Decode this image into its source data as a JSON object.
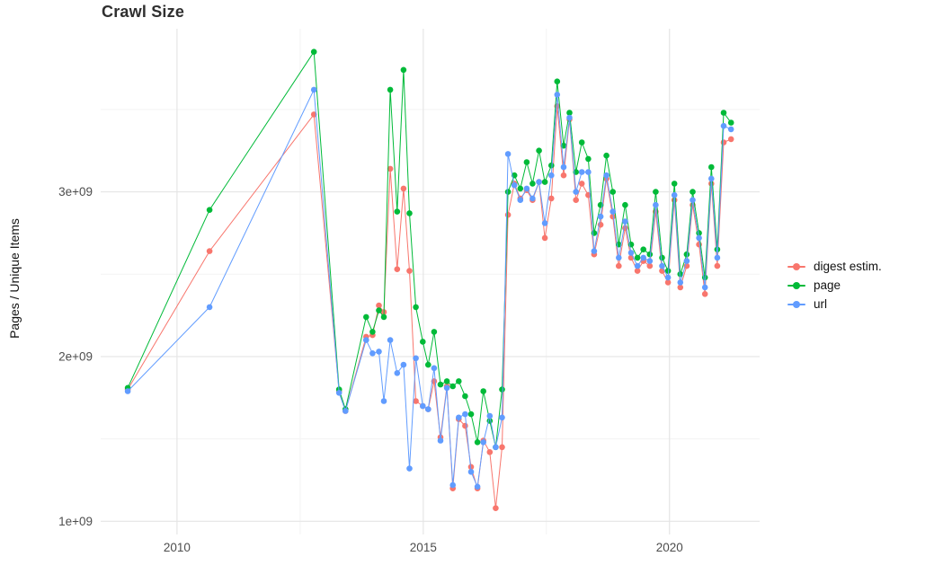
{
  "title": "Crawl Size",
  "axes": {
    "y_label": "Pages / Unique Items"
  },
  "legend": {
    "items": [
      {
        "label": "digest estim.",
        "color": "#F8766D"
      },
      {
        "label": "page",
        "color": "#00BA38"
      },
      {
        "label": "url",
        "color": "#619CFF"
      }
    ]
  },
  "chart_data": {
    "type": "line",
    "title": "Crawl Size",
    "xlabel": "",
    "ylabel": "Pages / Unique Items",
    "legend_position": "right",
    "grid": true,
    "y_unit_multiplier": 1000000000,
    "xlim": [
      2008.45,
      2021.83
    ],
    "ylim": [
      0.92,
      3.99
    ],
    "x_major_ticks": [
      2010,
      2015,
      2020
    ],
    "x_tick_labels": [
      "2010",
      "2015",
      "2020"
    ],
    "x_minor_ticks": [
      2012.5,
      2017.5
    ],
    "y_major_ticks": [
      1,
      2,
      3
    ],
    "y_tick_labels": [
      "1e+09",
      "2e+09",
      "3e+09"
    ],
    "y_minor_ticks": [
      1.5,
      2.5,
      3.5
    ],
    "x": [
      2009.0,
      2010.66,
      2012.78,
      2013.29,
      2013.42,
      2013.84,
      2013.97,
      2014.1,
      2014.2,
      2014.33,
      2014.47,
      2014.6,
      2014.72,
      2014.85,
      2014.99,
      2015.1,
      2015.22,
      2015.35,
      2015.48,
      2015.6,
      2015.72,
      2015.85,
      2015.97,
      2016.1,
      2016.22,
      2016.35,
      2016.47,
      2016.6,
      2016.72,
      2016.85,
      2016.97,
      2017.1,
      2017.22,
      2017.35,
      2017.47,
      2017.6,
      2017.72,
      2017.85,
      2017.97,
      2018.1,
      2018.22,
      2018.35,
      2018.47,
      2018.6,
      2018.72,
      2018.85,
      2018.97,
      2019.1,
      2019.22,
      2019.35,
      2019.47,
      2019.6,
      2019.72,
      2019.85,
      2019.97,
      2020.1,
      2020.22,
      2020.35,
      2020.47,
      2020.6,
      2020.72,
      2020.85,
      2020.97,
      2021.1,
      2021.25
    ],
    "series": [
      {
        "name": "digest estim.",
        "color": "#F8766D",
        "values": [
          1.8,
          2.64,
          3.47,
          1.79,
          1.67,
          2.12,
          2.13,
          2.31,
          2.27,
          3.14,
          2.53,
          3.02,
          2.52,
          1.73,
          1.7,
          1.68,
          1.85,
          1.51,
          1.82,
          1.2,
          1.62,
          1.58,
          1.33,
          1.2,
          1.49,
          1.42,
          1.08,
          1.45,
          2.86,
          3.05,
          2.96,
          3.01,
          2.95,
          3.06,
          2.72,
          2.96,
          3.52,
          3.1,
          3.44,
          2.95,
          3.05,
          2.98,
          2.62,
          2.8,
          3.08,
          2.85,
          2.55,
          2.78,
          2.6,
          2.52,
          2.58,
          2.55,
          2.88,
          2.52,
          2.45,
          2.95,
          2.42,
          2.55,
          2.92,
          2.68,
          2.38,
          3.05,
          2.55,
          3.3,
          3.32
        ]
      },
      {
        "name": "page",
        "color": "#00BA38",
        "values": [
          1.81,
          2.89,
          3.85,
          1.8,
          1.68,
          2.24,
          2.15,
          2.28,
          2.24,
          3.62,
          2.88,
          3.74,
          2.87,
          2.3,
          2.09,
          1.95,
          2.15,
          1.83,
          1.85,
          1.82,
          1.85,
          1.76,
          1.65,
          1.48,
          1.79,
          1.61,
          1.45,
          1.8,
          3.0,
          3.1,
          3.02,
          3.18,
          3.05,
          3.25,
          3.06,
          3.16,
          3.67,
          3.28,
          3.48,
          3.12,
          3.3,
          3.2,
          2.75,
          2.92,
          3.22,
          3.0,
          2.68,
          2.92,
          2.68,
          2.6,
          2.65,
          2.62,
          3.0,
          2.6,
          2.52,
          3.05,
          2.5,
          2.62,
          3.0,
          2.75,
          2.48,
          3.15,
          2.65,
          3.48,
          3.42
        ]
      },
      {
        "name": "url",
        "color": "#619CFF",
        "values": [
          1.79,
          2.3,
          3.62,
          1.78,
          1.67,
          2.1,
          2.02,
          2.03,
          1.73,
          2.1,
          1.9,
          1.95,
          1.32,
          1.99,
          1.7,
          1.68,
          1.93,
          1.49,
          1.81,
          1.22,
          1.63,
          1.65,
          1.3,
          1.21,
          1.48,
          1.64,
          1.45,
          1.63,
          3.23,
          3.04,
          2.95,
          3.02,
          2.96,
          3.06,
          2.81,
          3.1,
          3.59,
          3.15,
          3.45,
          3.0,
          3.12,
          3.12,
          2.64,
          2.85,
          3.1,
          2.88,
          2.6,
          2.82,
          2.63,
          2.55,
          2.6,
          2.58,
          2.92,
          2.55,
          2.48,
          2.98,
          2.45,
          2.58,
          2.95,
          2.72,
          2.42,
          3.08,
          2.6,
          3.4,
          3.38
        ]
      }
    ]
  }
}
